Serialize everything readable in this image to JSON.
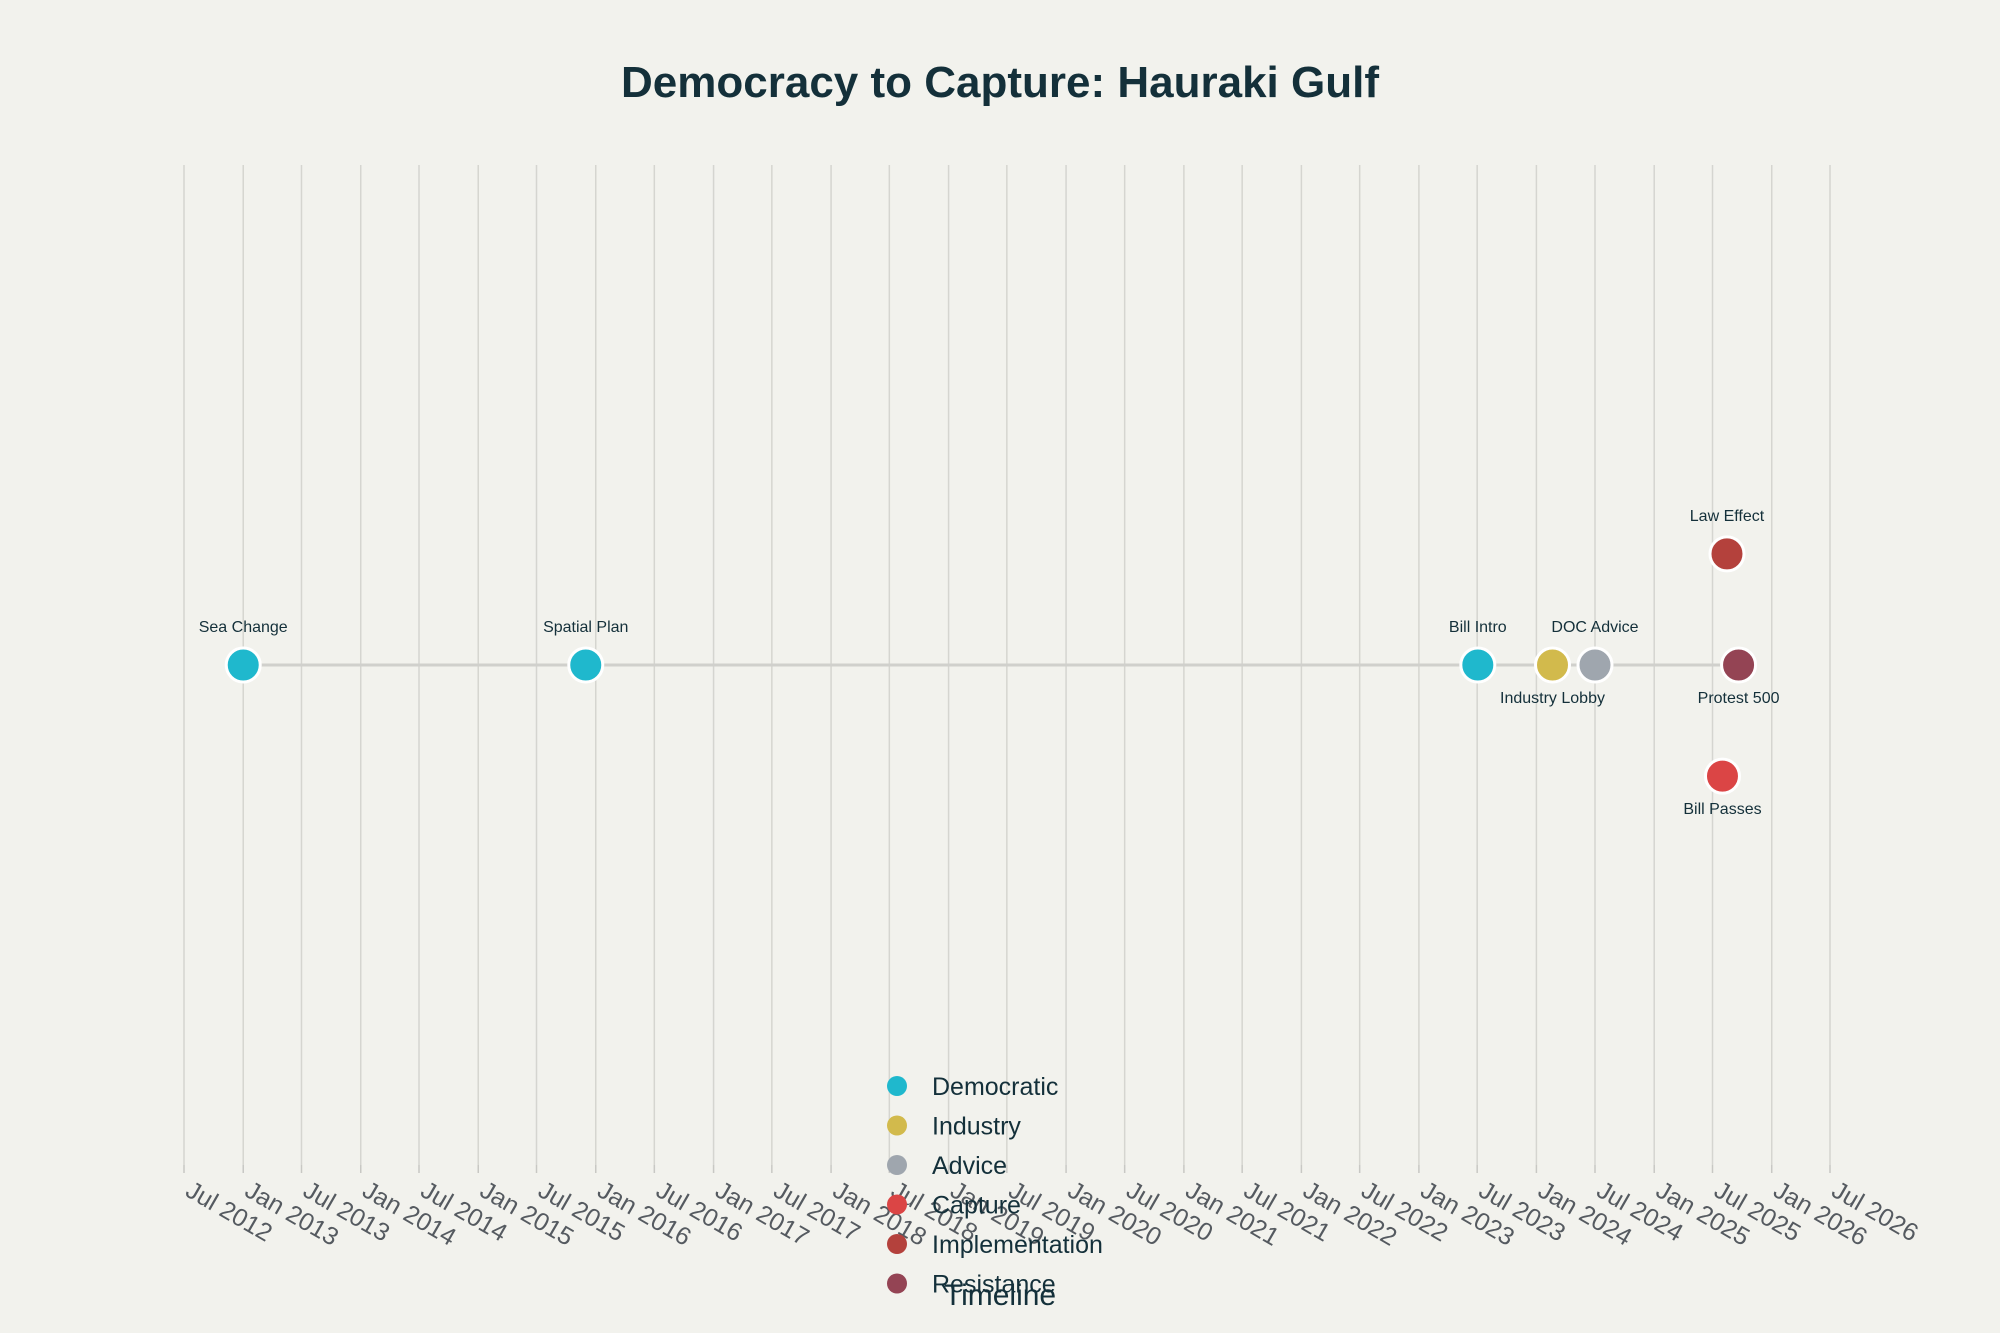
{
  "chart_data": {
    "type": "scatter",
    "title": "Democracy to Capture: Hauraki Gulf",
    "xlabel": "Timeline",
    "ylabel": "",
    "x_axis_type": "date",
    "xlim": [
      "2012-07-01",
      "2026-07-01"
    ],
    "ylim": [
      -4.5,
      4.5
    ],
    "grid": true,
    "legend_position": "bottom-center",
    "x_tick_labels": [
      "Jul 2012",
      "Jan 2013",
      "Jul 2013",
      "Jan 2014",
      "Jul 2014",
      "Jan 2015",
      "Jul 2015",
      "Jan 2016",
      "Jul 2016",
      "Jan 2017",
      "Jul 2017",
      "Jan 2018",
      "Jul 2018",
      "Jan 2019",
      "Jul 2019",
      "Jan 2020",
      "Jul 2020",
      "Jan 2021",
      "Jul 2021",
      "Jan 2022",
      "Jul 2022",
      "Jan 2023",
      "Jul 2023",
      "Jan 2024",
      "Jul 2024",
      "Jan 2025",
      "Jul 2025",
      "Jan 2026",
      "Jul 2026"
    ],
    "series": [
      {
        "name": "Democratic",
        "color": "#1fb8cd"
      },
      {
        "name": "Industry",
        "color": "#d2ba4c"
      },
      {
        "name": "Advice",
        "color": "#9fa6ae"
      },
      {
        "name": "Capture",
        "color": "#db4545"
      },
      {
        "name": "Implementation",
        "color": "#b4413c"
      },
      {
        "name": "Resistance",
        "color": "#944454"
      }
    ],
    "points": [
      {
        "label": "Sea Change",
        "date": "2013-01-01",
        "y": 0,
        "series": "Democratic",
        "label_position": "above"
      },
      {
        "label": "Spatial Plan",
        "date": "2015-12-01",
        "y": 0,
        "series": "Democratic",
        "label_position": "above"
      },
      {
        "label": "Bill Intro",
        "date": "2023-07-03",
        "y": 0,
        "series": "Democratic",
        "label_position": "above"
      },
      {
        "label": "Industry Lobby",
        "date": "2024-02-20",
        "y": 0,
        "series": "Industry",
        "label_position": "below"
      },
      {
        "label": "DOC Advice",
        "date": "2024-07-01",
        "y": 0,
        "series": "Advice",
        "label_position": "above"
      },
      {
        "label": "Law Effect",
        "date": "2025-08-15",
        "y": 1,
        "series": "Implementation",
        "label_position": "above"
      },
      {
        "label": "Protest 500",
        "date": "2025-09-20",
        "y": 0,
        "series": "Resistance",
        "label_position": "below"
      },
      {
        "label": "Bill Passes",
        "date": "2025-08-01",
        "y": -1,
        "series": "Capture",
        "label_position": "below"
      }
    ]
  }
}
